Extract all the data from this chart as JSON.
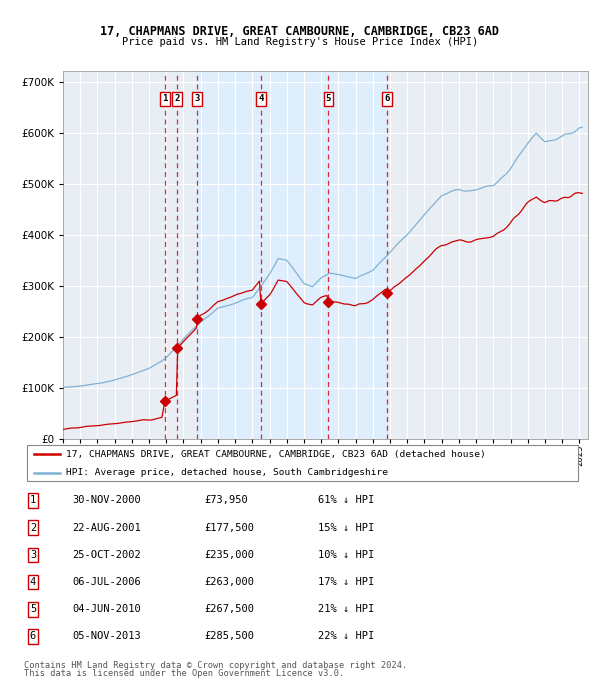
{
  "title": "17, CHAPMANS DRIVE, GREAT CAMBOURNE, CAMBRIDGE, CB23 6AD",
  "subtitle": "Price paid vs. HM Land Registry's House Price Index (HPI)",
  "legend_red": "17, CHAPMANS DRIVE, GREAT CAMBOURNE, CAMBRIDGE, CB23 6AD (detached house)",
  "legend_blue": "HPI: Average price, detached house, South Cambridgeshire",
  "footer1": "Contains HM Land Registry data © Crown copyright and database right 2024.",
  "footer2": "This data is licensed under the Open Government Licence v3.0.",
  "transactions": [
    {
      "num": 1,
      "date": "2000-11-30",
      "price": 73950
    },
    {
      "num": 2,
      "date": "2001-08-22",
      "price": 177500
    },
    {
      "num": 3,
      "date": "2002-10-25",
      "price": 235000
    },
    {
      "num": 4,
      "date": "2006-07-06",
      "price": 263000
    },
    {
      "num": 5,
      "date": "2010-06-04",
      "price": 267500
    },
    {
      "num": 6,
      "date": "2013-11-05",
      "price": 285500
    }
  ],
  "table_dates": [
    "30-NOV-2000",
    "22-AUG-2001",
    "25-OCT-2002",
    "06-JUL-2006",
    "04-JUN-2010",
    "05-NOV-2013"
  ],
  "table_prices": [
    "£73,950",
    "£177,500",
    "£235,000",
    "£263,000",
    "£267,500",
    "£285,500"
  ],
  "table_pcts": [
    "61% ↓ HPI",
    "15% ↓ HPI",
    "10% ↓ HPI",
    "17% ↓ HPI",
    "21% ↓ HPI",
    "22% ↓ HPI"
  ],
  "ylim": [
    0,
    720000
  ],
  "yticks": [
    0,
    100000,
    200000,
    300000,
    400000,
    500000,
    600000,
    700000
  ],
  "ytick_labels": [
    "£0",
    "£100K",
    "£200K",
    "£300K",
    "£400K",
    "£500K",
    "£600K",
    "£700K"
  ],
  "red_color": "#cc0000",
  "blue_color": "#7fb3d3",
  "shade_color": "#ddeeff",
  "chart_bg": "#e8eef4",
  "grid_color": "#ffffff",
  "trans_x": [
    2000.917,
    2001.639,
    2002.806,
    2006.506,
    2010.422,
    2013.839
  ]
}
